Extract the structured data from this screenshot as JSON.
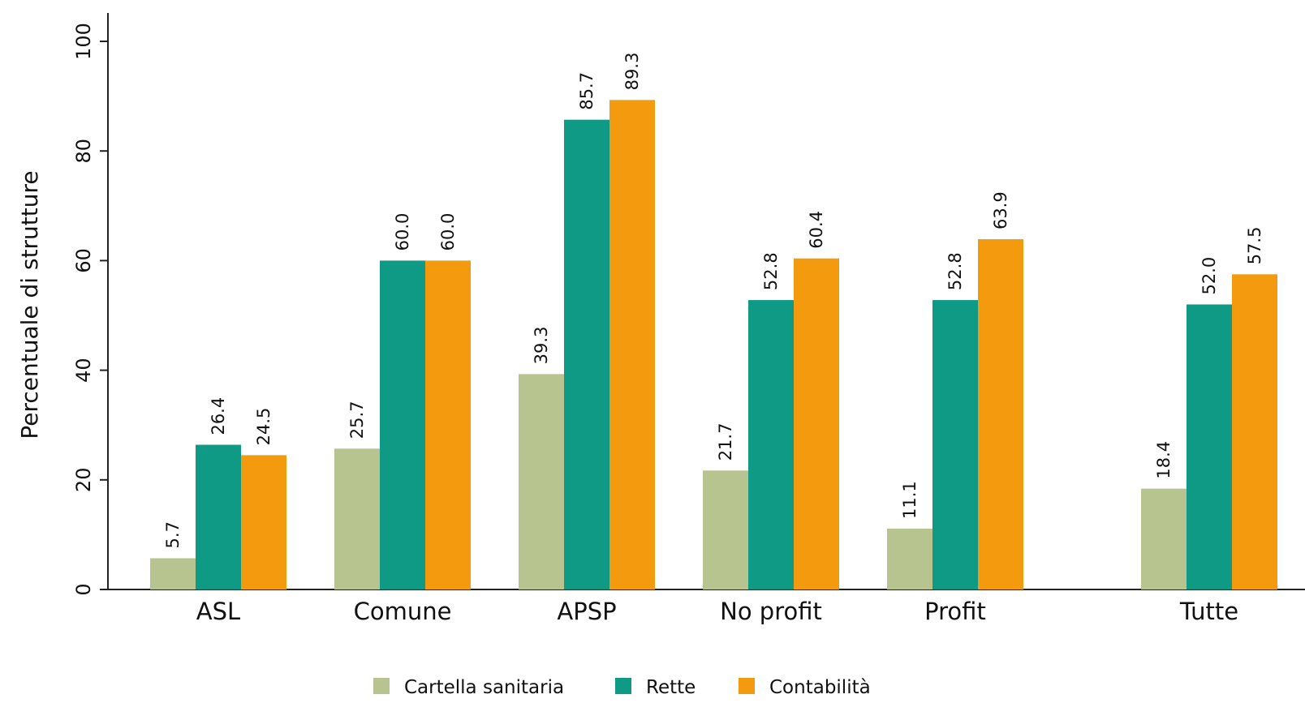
{
  "chart_data": {
    "type": "bar",
    "title": "",
    "xlabel": "",
    "ylabel": "Percentuale di strutture",
    "ylim": [
      0,
      100
    ],
    "yticks": [
      "0",
      "20",
      "40",
      "60",
      "80",
      "100"
    ],
    "grid": false,
    "legend_position": "bottom",
    "categories": [
      "ASL",
      "Comune",
      "APSP",
      "No profit",
      "Profit",
      "Tutte"
    ],
    "series": [
      {
        "name": "Cartella sanitaria",
        "color": "#b8c48f",
        "values": [
          5.7,
          25.7,
          39.3,
          21.7,
          11.1,
          18.4
        ],
        "labels": [
          "5.7",
          "25.7",
          "39.3",
          "21.7",
          "11.1",
          "18.4"
        ]
      },
      {
        "name": "Rette",
        "color": "#0f9a86",
        "values": [
          26.4,
          60.0,
          85.7,
          52.8,
          52.8,
          52.0
        ],
        "labels": [
          "26.4",
          "60.0",
          "85.7",
          "52.8",
          "52.8",
          "52.0"
        ]
      },
      {
        "name": "Contabilità",
        "color": "#f39a0f",
        "values": [
          24.5,
          60.0,
          89.3,
          60.4,
          63.9,
          57.5
        ],
        "labels": [
          "24.5",
          "60.0",
          "89.3",
          "60.4",
          "63.9",
          "57.5"
        ]
      }
    ]
  }
}
